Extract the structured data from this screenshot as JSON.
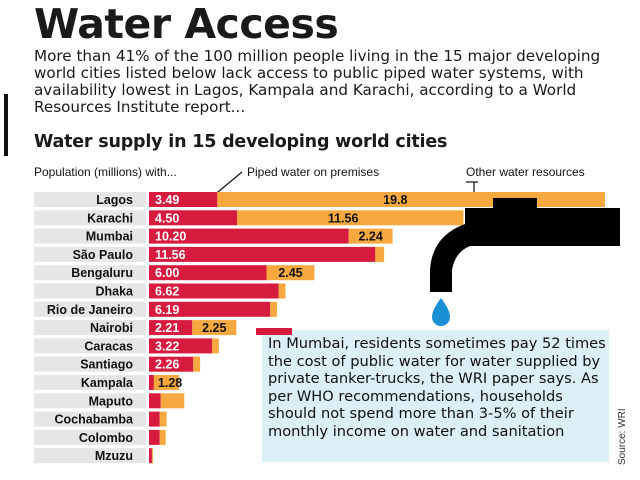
{
  "headline": "Water Access",
  "intro": "More than 41% of the 100 million people living in the 15 major developing world cities listed below lack access to public piped water systems, with availability lowest in Lagos, Kampala and Karachi, according to a World Resources Institute report...",
  "subheading": "Water supply in 15 developing world cities",
  "headers": {
    "population": "Population (millions) with...",
    "piped": "Piped water on premises",
    "other": "Other water resources"
  },
  "callout": "In Mumbai, residents sometimes pay 52 times the cost of public water for water supplied by private tanker-trucks, the WRI paper says. As per WHO recommendations, households should not spend more than 3-5% of their monthly income on water and sanitation",
  "source": "Source: WRI",
  "colors": {
    "piped": "#d71b3f",
    "other": "#f7a83e",
    "label_band": "#e6e6e6",
    "callout_bg": "#dceef6",
    "tap": "#000000",
    "drop": "#1b8fd6"
  },
  "icons": {
    "tap": "water-tap-icon",
    "drop": "water-drop-icon"
  },
  "chart_data": {
    "type": "bar",
    "stacked": true,
    "orientation": "horizontal",
    "title": "Water supply in 15 developing world cities",
    "categories": [
      "Lagos",
      "Karachi",
      "Mumbai",
      "São Paulo",
      "Bengaluru",
      "Dhaka",
      "Rio de Janeiro",
      "Nairobi",
      "Caracas",
      "Santiago",
      "Kampala",
      "Maputo",
      "Cochabamba",
      "Colombo",
      "Mzuzu"
    ],
    "series": [
      {
        "name": "Piped water on premises",
        "values": [
          3.49,
          4.5,
          10.2,
          11.56,
          6.0,
          6.62,
          6.19,
          2.21,
          3.22,
          2.26,
          0.25,
          0.6,
          0.55,
          0.55,
          0.15
        ],
        "labels": [
          "3.49",
          "4.50",
          "10.20",
          "11.56",
          "6.00",
          "6.62",
          "6.19",
          "2.21",
          "3.22",
          "2.26",
          "",
          "",
          "",
          "",
          ""
        ]
      },
      {
        "name": "Other water resources",
        "values": [
          19.8,
          11.56,
          2.24,
          0.45,
          2.45,
          0.35,
          0.35,
          2.25,
          0.35,
          0.35,
          1.28,
          1.2,
          0.35,
          0.3,
          0.05
        ],
        "labels": [
          "19.8",
          "11.56",
          "2.24",
          "",
          "2.45",
          "",
          "",
          "2.25",
          "",
          "",
          "1.28",
          "",
          "",
          "",
          ""
        ]
      }
    ],
    "legend": "top"
  }
}
